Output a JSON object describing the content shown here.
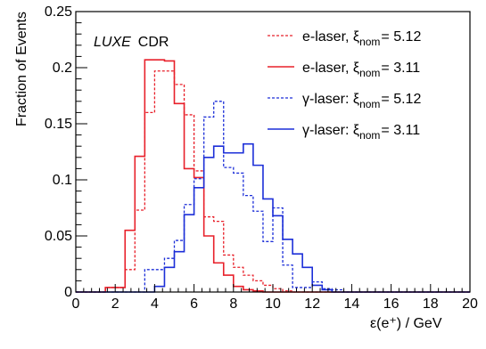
{
  "chart_data": {
    "type": "histogram",
    "title": "",
    "xlabel": "ε(e⁺) / GeV",
    "ylabel": "Fraction of Events",
    "xlim": [
      0,
      20
    ],
    "ylim": [
      0,
      0.25
    ],
    "grid": false,
    "legend_position": "top-right",
    "annotation": {
      "italic": "LUXE",
      "normal": "CDR"
    },
    "x_ticks": [
      "0",
      "2",
      "4",
      "6",
      "8",
      "10",
      "12",
      "14",
      "16",
      "18",
      "20"
    ],
    "y_ticks": [
      "0",
      "0.05",
      "0.1",
      "0.15",
      "0.2",
      "0.25"
    ],
    "bin_edges": [
      0,
      0.5,
      1,
      1.5,
      2,
      2.5,
      3,
      3.5,
      4,
      4.5,
      5,
      5.5,
      6,
      6.5,
      7,
      7.5,
      8,
      8.5,
      9,
      9.5,
      10,
      10.5,
      11,
      11.5,
      12,
      12.5,
      13,
      13.5,
      14,
      14.5,
      15,
      15.5,
      16,
      16.5,
      17,
      17.5,
      18,
      18.5,
      19,
      19.5,
      20
    ],
    "series": [
      {
        "legend": {
          "prefix": "e-laser, ξ",
          "sub": "nom",
          "suffix": "= 5.12"
        },
        "color": "#e8202a",
        "dashed": true,
        "values": [
          0,
          0,
          0,
          0.004,
          0.004,
          0.02,
          0.073,
          0.16,
          0.197,
          0.197,
          0.185,
          0.158,
          0.108,
          0.067,
          0.063,
          0.033,
          0.022,
          0.015,
          0.01,
          0.006,
          0.003,
          0.001,
          0,
          0,
          0,
          0,
          0,
          0,
          0,
          0,
          0,
          0,
          0,
          0,
          0,
          0,
          0,
          0,
          0,
          0
        ]
      },
      {
        "legend": {
          "prefix": "e-laser, ξ",
          "sub": "nom",
          "suffix": "= 3.11"
        },
        "color": "#e8202a",
        "dashed": false,
        "values": [
          0,
          0,
          0,
          0.004,
          0.004,
          0.055,
          0.121,
          0.207,
          0.207,
          0.206,
          0.168,
          0.11,
          0.102,
          0.05,
          0.026,
          0.015,
          0.005,
          0.002,
          0.001,
          0,
          0,
          0,
          0,
          0,
          0,
          0,
          0,
          0,
          0,
          0,
          0,
          0,
          0,
          0,
          0,
          0,
          0,
          0,
          0,
          0
        ]
      },
      {
        "legend": {
          "prefix": "γ-laser: ξ",
          "sub": "nom",
          "suffix": "= 5.12"
        },
        "color": "#1c2fd8",
        "dashed": true,
        "values": [
          0,
          0,
          0,
          0,
          0,
          0,
          0,
          0.02,
          0.02,
          0.03,
          0.046,
          0.078,
          0.101,
          0.156,
          0.17,
          0.111,
          0.106,
          0.086,
          0.072,
          0.045,
          0.075,
          0.024,
          0.004,
          0.004,
          0.009,
          0.003,
          0.002,
          0,
          0,
          0,
          0,
          0,
          0,
          0,
          0,
          0,
          0,
          0,
          0,
          0
        ]
      },
      {
        "legend": {
          "prefix": "γ-laser: ξ",
          "sub": "nom",
          "suffix": "= 3.11"
        },
        "color": "#1c2fd8",
        "dashed": false,
        "values": [
          0,
          0,
          0,
          0,
          0,
          0,
          0,
          0,
          0.005,
          0.022,
          0.036,
          0.069,
          0.093,
          0.12,
          0.13,
          0.124,
          0.124,
          0.132,
          0.113,
          0.083,
          0.068,
          0.047,
          0.034,
          0.022,
          0.006,
          0.002,
          0,
          0,
          0,
          0,
          0,
          0,
          0,
          0,
          0,
          0,
          0,
          0,
          0,
          0
        ]
      }
    ]
  }
}
